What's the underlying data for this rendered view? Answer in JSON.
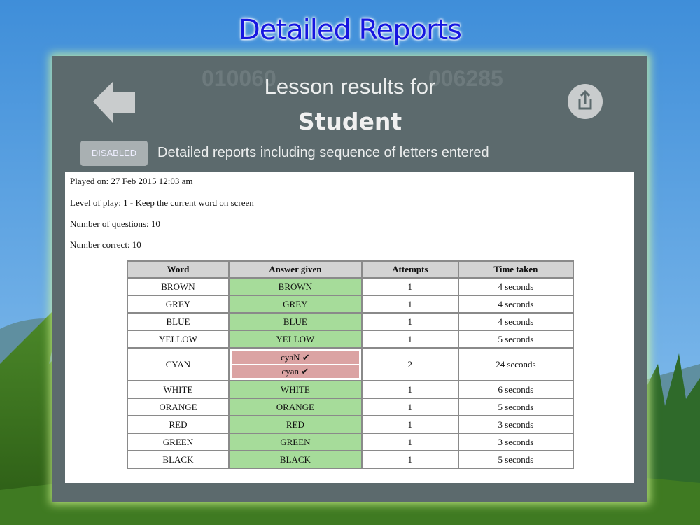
{
  "title": "Detailed Reports",
  "background_scores": [
    "010060",
    "006285"
  ],
  "header": {
    "title": "Lesson results for",
    "student": "Student",
    "toggle": "DISABLED",
    "toggle_label": "Detailed reports including sequence of letters entered"
  },
  "report": {
    "info": [
      "Played on: 27 Feb 2015 12:03 am",
      "Level of play: 1 - Keep the current word on screen",
      "Number of questions: 10",
      "Number correct: 10"
    ],
    "table": {
      "columns": [
        "Word",
        "Answer given",
        "Attempts",
        "Time taken"
      ],
      "rows": [
        {
          "word": "BROWN",
          "answers": [
            "BROWN"
          ],
          "answer_color": "#a6dc9a",
          "attempts": 1,
          "time": "4 seconds"
        },
        {
          "word": "GREY",
          "answers": [
            "GREY"
          ],
          "answer_color": "#a6dc9a",
          "attempts": 1,
          "time": "4 seconds"
        },
        {
          "word": "BLUE",
          "answers": [
            "BLUE"
          ],
          "answer_color": "#a6dc9a",
          "attempts": 1,
          "time": "4 seconds"
        },
        {
          "word": "YELLOW",
          "answers": [
            "YELLOW"
          ],
          "answer_color": "#a6dc9a",
          "attempts": 1,
          "time": "5 seconds"
        },
        {
          "word": "CYAN",
          "answers": [
            "cyaN ✔",
            "cyan ✔"
          ],
          "answer_color": "#dba3a3",
          "attempts": 2,
          "time": "24 seconds"
        },
        {
          "word": "WHITE",
          "answers": [
            "WHITE"
          ],
          "answer_color": "#a6dc9a",
          "attempts": 1,
          "time": "6 seconds"
        },
        {
          "word": "ORANGE",
          "answers": [
            "ORANGE"
          ],
          "answer_color": "#a6dc9a",
          "attempts": 1,
          "time": "5 seconds"
        },
        {
          "word": "RED",
          "answers": [
            "RED"
          ],
          "answer_color": "#a6dc9a",
          "attempts": 1,
          "time": "3 seconds"
        },
        {
          "word": "GREEN",
          "answers": [
            "GREEN"
          ],
          "answer_color": "#a6dc9a",
          "attempts": 1,
          "time": "3 seconds"
        },
        {
          "word": "BLACK",
          "answers": [
            "BLACK"
          ],
          "answer_color": "#a6dc9a",
          "attempts": 1,
          "time": "5 seconds"
        }
      ]
    }
  }
}
